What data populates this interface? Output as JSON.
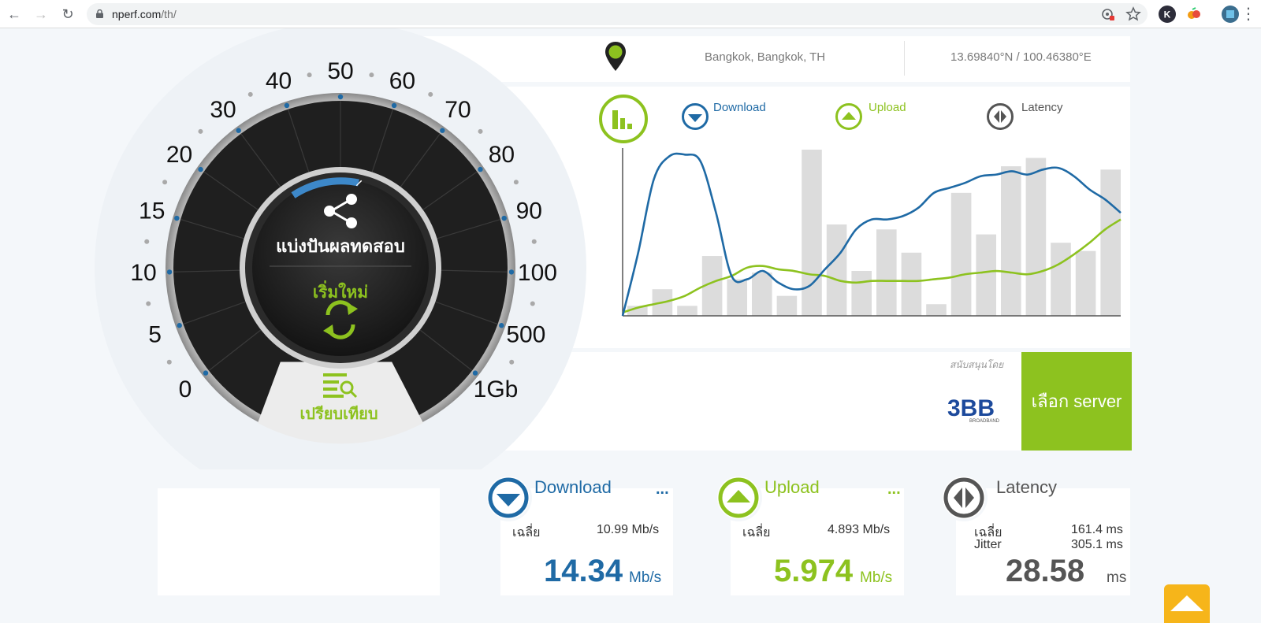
{
  "browser": {
    "url_host": "nperf.com",
    "url_path": "/th/"
  },
  "location": {
    "city": "Bangkok, Bangkok, TH",
    "coords": "13.69840°N / 100.46380°E"
  },
  "gauge": {
    "share_label": "แบ่งปันผลทดสอบ",
    "restart_label": "เริ่มใหม่",
    "compare_label": "เปรียบเทียบ",
    "scale_labels": [
      "0",
      "5",
      "10",
      "15",
      "20",
      "30",
      "40",
      "50",
      "60",
      "70",
      "80",
      "90",
      "100",
      "500",
      "1Gb"
    ]
  },
  "legend": {
    "download": "Download",
    "upload": "Upload",
    "latency": "Latency"
  },
  "sponsor": {
    "label": "สนับสนุนโดย",
    "logo_text": "3BB",
    "logo_sub": "BROADBAND",
    "select_server": "เลือก server"
  },
  "stats": {
    "download": {
      "title": "Download",
      "dots": "...",
      "avg_label": "เฉลี่ย",
      "avg_value": "10.99 Mb/s",
      "value": "14.34",
      "unit": "Mb/s"
    },
    "upload": {
      "title": "Upload",
      "dots": "...",
      "avg_label": "เฉลี่ย",
      "avg_value": "4.893 Mb/s",
      "value": "5.974",
      "unit": "Mb/s"
    },
    "latency": {
      "title": "Latency",
      "avg_label": "เฉลี่ย",
      "avg_value": "161.4 ms",
      "jitter_label": "Jitter",
      "jitter_value": "305.1 ms",
      "value": "28.58",
      "unit": "ms"
    }
  },
  "colors": {
    "download": "#1f6aa5",
    "upload": "#8dc21f",
    "latency": "#555555",
    "gauge_dark": "#222222"
  },
  "chart_data": {
    "type": "line",
    "series": [
      {
        "name": "Download",
        "values": [
          0,
          38,
          82,
          96,
          97,
          93,
          62,
          24,
          22,
          27,
          20,
          16,
          18,
          28,
          38,
          52,
          58,
          58,
          60,
          65,
          74,
          77,
          80,
          84,
          85,
          87,
          85,
          88,
          89,
          84,
          76,
          70,
          62
        ]
      },
      {
        "name": "Upload",
        "values": [
          2,
          5,
          7,
          9,
          12,
          17,
          21,
          24,
          29,
          30,
          28,
          27,
          25,
          24,
          21,
          20,
          21,
          21,
          21,
          21,
          22,
          23,
          25,
          26,
          27,
          26,
          25,
          27,
          31,
          37,
          44,
          52,
          58
        ]
      },
      {
        "name": "Latency",
        "values": [
          6,
          16,
          6,
          36,
          22,
          26,
          12,
          100,
          55,
          27,
          52,
          38,
          7,
          74,
          49,
          90,
          95,
          44,
          39,
          88
        ]
      }
    ],
    "ylim": [
      0,
      100
    ]
  }
}
